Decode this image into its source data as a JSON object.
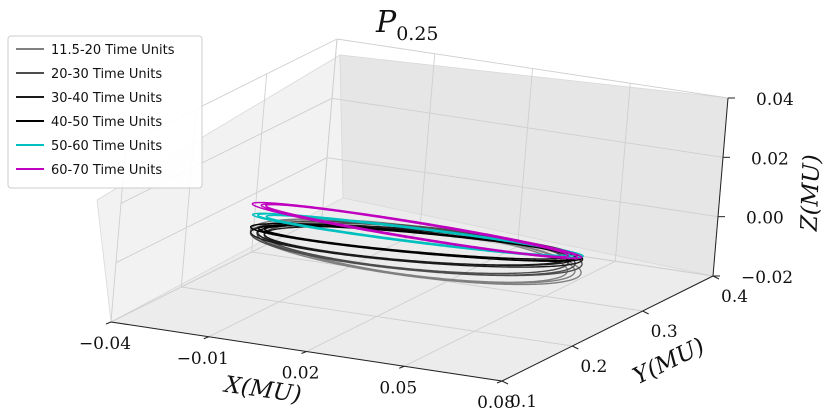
{
  "chart_data": {
    "type": "line",
    "projection": "3d",
    "title": "P",
    "title_subscript": "0.25",
    "xlabel": "X(MU)",
    "ylabel": "Y(MU)",
    "zlabel": "Z(MU)",
    "xlim": [
      -0.04,
      0.08
    ],
    "ylim": [
      0.1,
      0.4
    ],
    "zlim": [
      -0.02,
      0.04
    ],
    "xticks": [
      "−0.04",
      "−0.01",
      "0.02",
      "0.05",
      "0.08"
    ],
    "yticks": [
      "0.1",
      "0.2",
      "0.3",
      "0.4"
    ],
    "zticks": [
      "−0.02",
      "0.00",
      "0.02",
      "0.04"
    ],
    "grid": true,
    "legend_position": "top-left",
    "orbit": {
      "x_center": 0.02,
      "x_radius": 0.048,
      "y_center": 0.25,
      "y_radius": 0.035,
      "z_amplitude": 0.003
    },
    "series": [
      {
        "name": "11.5-20 Time Units",
        "color": "#808080",
        "z_offset": -0.004,
        "loops": 3
      },
      {
        "name": "20-30 Time Units",
        "color": "#4d4d4d",
        "z_offset": -0.003,
        "loops": 3
      },
      {
        "name": "30-40 Time Units",
        "color": "#1a1a1a",
        "z_offset": -0.002,
        "loops": 3
      },
      {
        "name": "40-50 Time Units",
        "color": "#000000",
        "z_offset": -0.001,
        "loops": 3
      },
      {
        "name": "50-60 Time Units",
        "color": "#00bfbf",
        "z_offset": 0.0015,
        "loops": 3
      },
      {
        "name": "60-70 Time Units",
        "color": "#bf00bf",
        "z_offset": 0.003,
        "loops": 3
      }
    ]
  }
}
